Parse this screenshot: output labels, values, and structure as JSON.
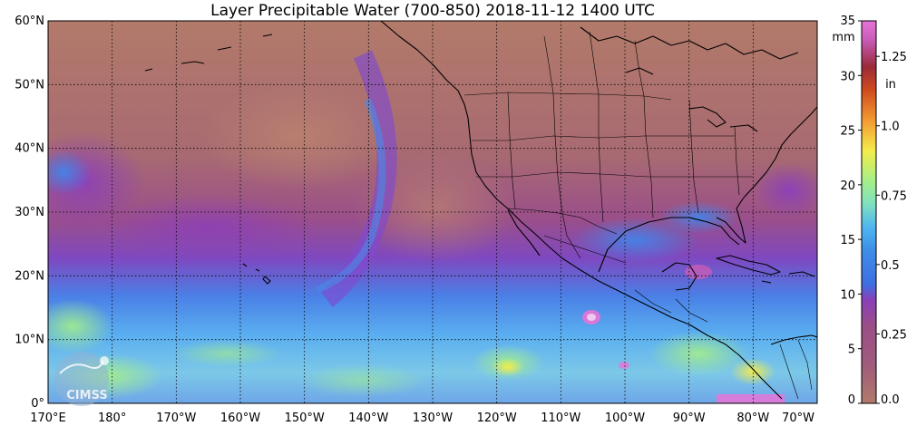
{
  "title": "Layer Precipitable Water (700-850)  2018-11-12 1400 UTC",
  "map": {
    "lat_labels": [
      {
        "value": 60,
        "label": "60°N"
      },
      {
        "value": 50,
        "label": "50°N"
      },
      {
        "value": 40,
        "label": "40°N"
      },
      {
        "value": 30,
        "label": "30°N"
      },
      {
        "value": 20,
        "label": "20°N"
      },
      {
        "value": 10,
        "label": "10°N"
      },
      {
        "value": 0,
        "label": "0°"
      }
    ],
    "lon_labels": [
      {
        "value": 170,
        "label": "170°E"
      },
      {
        "value": 180,
        "label": "180°"
      },
      {
        "value": -170,
        "label": "170°W"
      },
      {
        "value": -160,
        "label": "160°W"
      },
      {
        "value": -150,
        "label": "150°W"
      },
      {
        "value": -140,
        "label": "140°W"
      },
      {
        "value": -130,
        "label": "130°W"
      },
      {
        "value": -120,
        "label": "120°W"
      },
      {
        "value": -110,
        "label": "110°W"
      },
      {
        "value": -100,
        "label": "100°W"
      },
      {
        "value": -90,
        "label": "90°W"
      },
      {
        "value": -80,
        "label": "80°W"
      },
      {
        "value": -70,
        "label": "70°W"
      }
    ]
  },
  "colorbar": {
    "unit_mm": "mm",
    "unit_in": "in",
    "mm_range": [
      0,
      35
    ],
    "mm_ticks": [
      {
        "value": 0,
        "label": "0"
      },
      {
        "value": 5,
        "label": "5"
      },
      {
        "value": 10,
        "label": "10"
      },
      {
        "value": 15,
        "label": "15"
      },
      {
        "value": 20,
        "label": "20"
      },
      {
        "value": 25,
        "label": "25"
      },
      {
        "value": 30,
        "label": "30"
      },
      {
        "value": 35,
        "label": "35"
      }
    ],
    "in_ticks": [
      {
        "value": 0.0,
        "label": "0.0"
      },
      {
        "value": 0.25,
        "label": "0.25"
      },
      {
        "value": 0.5,
        "label": "0.5"
      },
      {
        "value": 0.75,
        "label": "0.75"
      },
      {
        "value": 1.0,
        "label": "1.0"
      },
      {
        "value": 1.25,
        "label": "1.25"
      }
    ],
    "colors": [
      "#b27a6a",
      "#9a4f86",
      "#8b3fb8",
      "#3e7ee8",
      "#4fb6f0",
      "#a4ee8a",
      "#f4ec4a",
      "#f39a32",
      "#cf4a1e",
      "#e774d8"
    ]
  },
  "logo": {
    "text": "CIMSS"
  }
}
